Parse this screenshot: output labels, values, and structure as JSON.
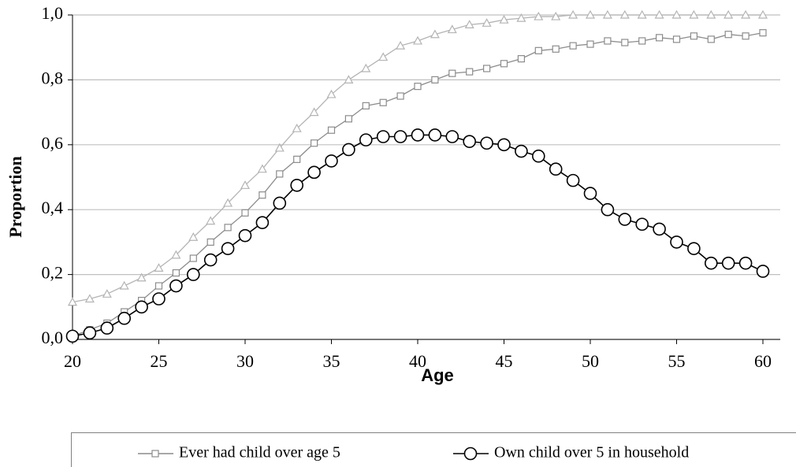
{
  "chart_data": {
    "type": "line",
    "x_label": "Age",
    "y_label": "Proportion",
    "x": [
      20,
      21,
      22,
      23,
      24,
      25,
      26,
      27,
      28,
      29,
      30,
      31,
      32,
      33,
      34,
      35,
      36,
      37,
      38,
      39,
      40,
      41,
      42,
      43,
      44,
      45,
      46,
      47,
      48,
      49,
      50,
      51,
      52,
      53,
      54,
      55,
      56,
      57,
      58,
      59,
      60
    ],
    "xlim": [
      20,
      60
    ],
    "xticks": [
      20,
      25,
      30,
      35,
      40,
      45,
      50,
      55,
      60
    ],
    "ylim": [
      0,
      1
    ],
    "yticks": [
      {
        "value": 0,
        "label": "0,0"
      },
      {
        "value": 0.2,
        "label": "0,2"
      },
      {
        "value": 0.4,
        "label": "0,4"
      },
      {
        "value": 0.6,
        "label": "0,6"
      },
      {
        "value": 0.8,
        "label": "0,8"
      },
      {
        "value": 1,
        "label": "1,0"
      }
    ],
    "grid": true,
    "series": [
      {
        "color": "#b4b4b4",
        "marker": "triangle",
        "values": [
          0.115,
          0.125,
          0.14,
          0.165,
          0.19,
          0.22,
          0.26,
          0.315,
          0.365,
          0.42,
          0.475,
          0.525,
          0.59,
          0.65,
          0.7,
          0.755,
          0.8,
          0.835,
          0.87,
          0.905,
          0.92,
          0.94,
          0.955,
          0.97,
          0.975,
          0.985,
          0.99,
          0.995,
          0.995,
          1,
          1,
          1,
          1,
          1,
          1,
          1,
          1,
          1,
          1,
          1,
          1
        ]
      },
      {
        "name": "Ever had child over age 5",
        "color": "#8c8c8c",
        "marker": "square",
        "values": [
          0.01,
          0.03,
          0.05,
          0.085,
          0.12,
          0.165,
          0.205,
          0.25,
          0.3,
          0.345,
          0.39,
          0.445,
          0.51,
          0.555,
          0.605,
          0.645,
          0.68,
          0.72,
          0.73,
          0.75,
          0.78,
          0.8,
          0.82,
          0.825,
          0.835,
          0.85,
          0.865,
          0.89,
          0.895,
          0.905,
          0.91,
          0.92,
          0.915,
          0.92,
          0.93,
          0.925,
          0.935,
          0.925,
          0.94,
          0.935,
          0.945
        ]
      },
      {
        "name": "Own child over 5 in household",
        "color": "#000000",
        "marker": "circle",
        "values": [
          0.01,
          0.02,
          0.035,
          0.065,
          0.1,
          0.125,
          0.165,
          0.2,
          0.245,
          0.28,
          0.32,
          0.36,
          0.42,
          0.475,
          0.515,
          0.55,
          0.585,
          0.615,
          0.625,
          0.625,
          0.63,
          0.63,
          0.625,
          0.61,
          0.605,
          0.6,
          0.58,
          0.565,
          0.525,
          0.49,
          0.45,
          0.4,
          0.37,
          0.355,
          0.34,
          0.3,
          0.28,
          0.235,
          0.235,
          0.235,
          0.21
        ]
      }
    ]
  }
}
